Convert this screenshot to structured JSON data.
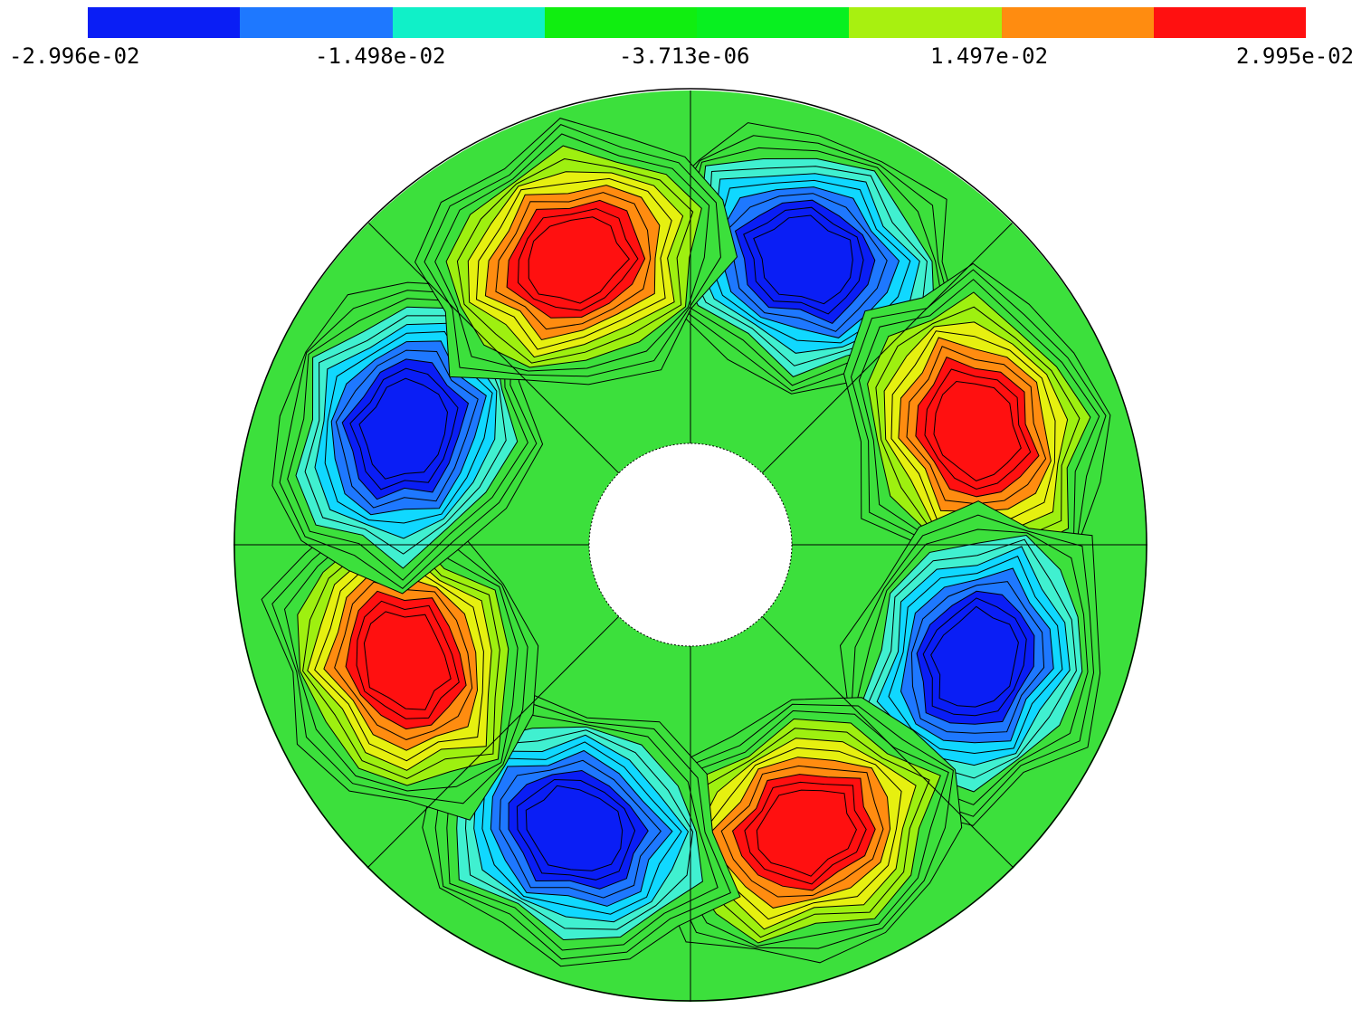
{
  "legend": {
    "colors": [
      "#0a1ef5",
      "#1e78ff",
      "#10f0c8",
      "#10ee10",
      "#08f020",
      "#a8f010",
      "#ff8c10",
      "#ff1010"
    ],
    "labels": [
      "-2.996e-02",
      "-1.498e-02",
      "-3.713e-06",
      "1.497e-02",
      "2.995e-02"
    ]
  },
  "field": {
    "background_color": "#3ce03c",
    "poles": [
      {
        "angle_deg": -68,
        "sign": "negative"
      },
      {
        "angle_deg": -22,
        "sign": "positive"
      },
      {
        "angle_deg": 22,
        "sign": "negative"
      },
      {
        "angle_deg": 68,
        "sign": "positive"
      },
      {
        "angle_deg": 112,
        "sign": "negative"
      },
      {
        "angle_deg": 158,
        "sign": "positive"
      },
      {
        "angle_deg": 202,
        "sign": "negative"
      },
      {
        "angle_deg": 248,
        "sign": "positive"
      }
    ],
    "positive_scale": [
      "#3ce03c",
      "#9ef010",
      "#e6f010",
      "#ff8c10",
      "#ff1010"
    ],
    "negative_scale": [
      "#3ce03c",
      "#40f0d0",
      "#10d8ff",
      "#1e78ff",
      "#0a1ef5"
    ]
  }
}
